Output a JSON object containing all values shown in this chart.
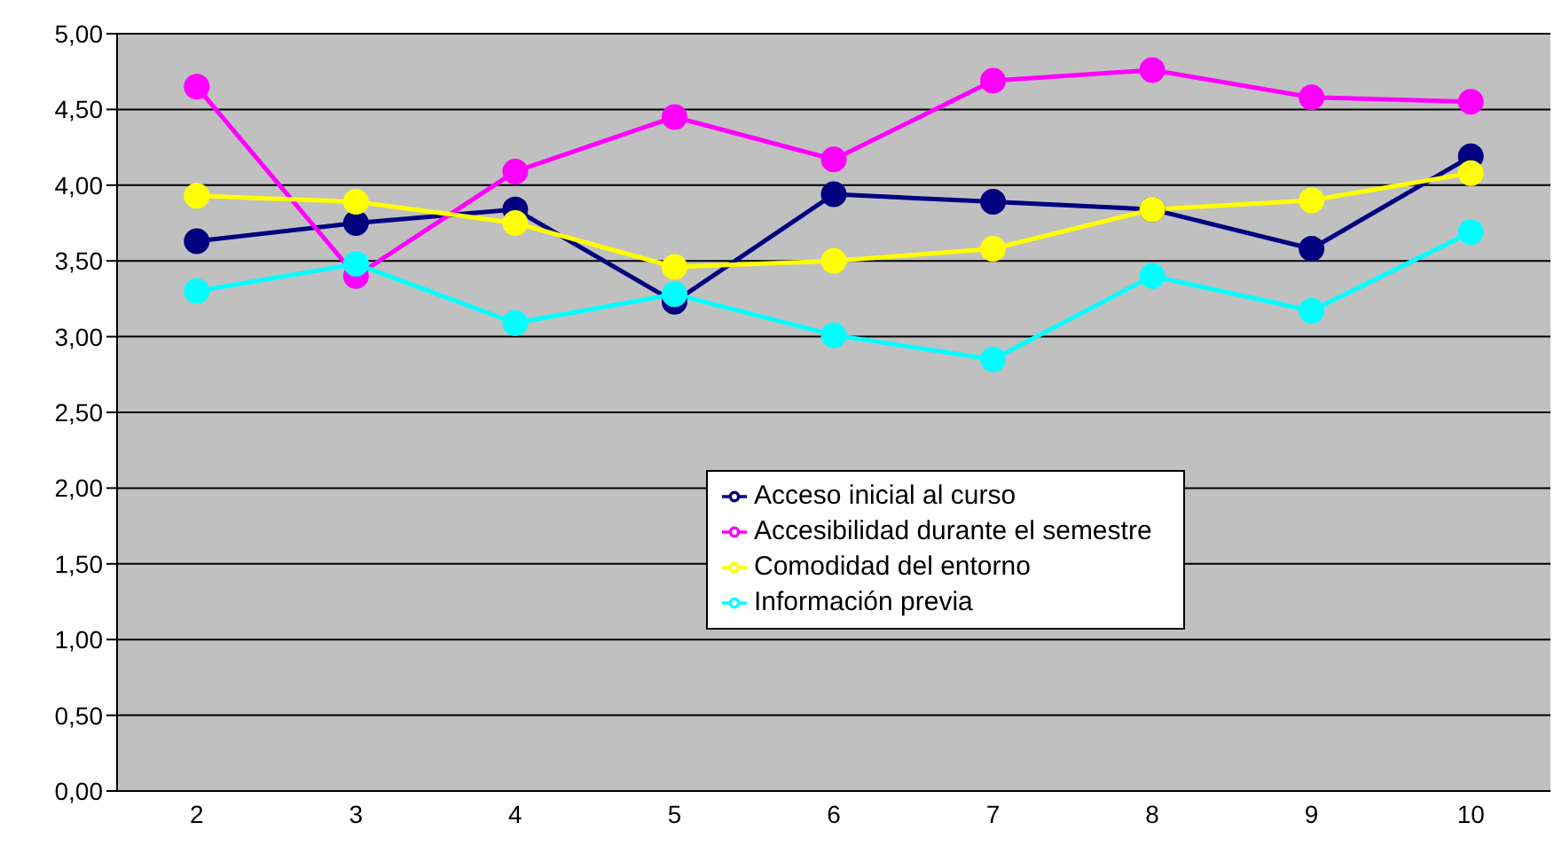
{
  "chart_data": {
    "type": "line",
    "categories": [
      "2",
      "3",
      "4",
      "5",
      "6",
      "7",
      "8",
      "9",
      "10"
    ],
    "series": [
      {
        "name": "Acceso inicial al curso",
        "color": "#000080",
        "values": [
          3.63,
          3.75,
          3.84,
          3.23,
          3.94,
          3.89,
          3.84,
          3.58,
          4.19
        ]
      },
      {
        "name": "Accesibilidad durante el semestre",
        "color": "#ff00ff",
        "values": [
          4.65,
          3.4,
          4.09,
          4.45,
          4.17,
          4.69,
          4.76,
          4.58,
          4.55
        ]
      },
      {
        "name": "Comodidad del entorno",
        "color": "#ffff00",
        "values": [
          3.93,
          3.89,
          3.75,
          3.46,
          3.5,
          3.58,
          3.84,
          3.9,
          4.08
        ]
      },
      {
        "name": "Información previa",
        "color": "#00ffff",
        "values": [
          3.3,
          3.48,
          3.09,
          3.28,
          3.01,
          2.85,
          3.4,
          3.17,
          3.69
        ]
      }
    ],
    "ylim": [
      0,
      5
    ],
    "yticks": [
      {
        "value": 0,
        "label": "0,00"
      },
      {
        "value": 0.5,
        "label": "0,50"
      },
      {
        "value": 1,
        "label": "1,00"
      },
      {
        "value": 1.5,
        "label": "1,50"
      },
      {
        "value": 2,
        "label": "2,00"
      },
      {
        "value": 2.5,
        "label": "2,50"
      },
      {
        "value": 3,
        "label": "3,00"
      },
      {
        "value": 3.5,
        "label": "3,50"
      },
      {
        "value": 4,
        "label": "4,00"
      },
      {
        "value": 4.5,
        "label": "4,50"
      },
      {
        "value": 5,
        "label": "5,00"
      }
    ],
    "grid": "y",
    "legend": "bottom",
    "marker": "circle",
    "line_style": "solid"
  }
}
